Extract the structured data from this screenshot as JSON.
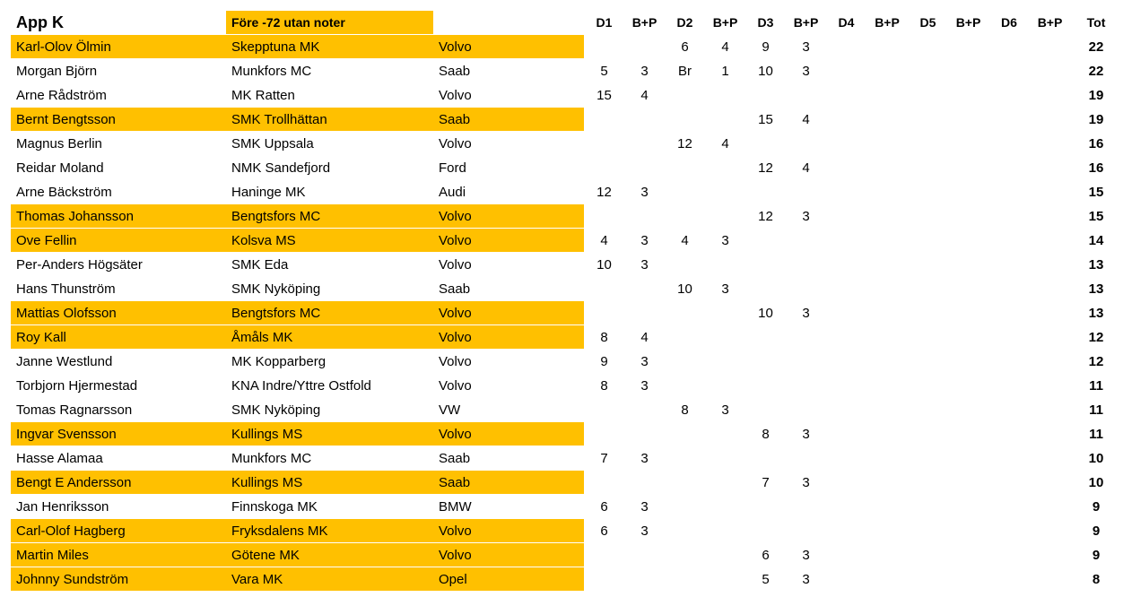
{
  "header": {
    "title": "App K",
    "subtitle": "Före -72 utan noter",
    "columns": [
      "D1",
      "B+P",
      "D2",
      "B+P",
      "D3",
      "B+P",
      "D4",
      "B+P",
      "D5",
      "B+P",
      "D6",
      "B+P",
      "Tot"
    ]
  },
  "highlight_color": "#FFC000",
  "rows": [
    {
      "name": "Karl-Olov Ölmin",
      "club": "Skepptuna MK",
      "car": "Volvo",
      "scores": [
        "",
        "",
        "6",
        "4",
        "9",
        "3",
        "",
        "",
        "",
        "",
        "",
        ""
      ],
      "tot": "22",
      "hl": true
    },
    {
      "name": "Morgan Björn",
      "club": "Munkfors MC",
      "car": "Saab",
      "scores": [
        "5",
        "3",
        "Br",
        "1",
        "10",
        "3",
        "",
        "",
        "",
        "",
        "",
        ""
      ],
      "tot": "22",
      "hl": false
    },
    {
      "name": "Arne Rådström",
      "club": "MK Ratten",
      "car": "Volvo",
      "scores": [
        "15",
        "4",
        "",
        "",
        "",
        "",
        "",
        "",
        "",
        "",
        "",
        ""
      ],
      "tot": "19",
      "hl": false
    },
    {
      "name": "Bernt Bengtsson",
      "club": "SMK Trollhättan",
      "car": "Saab",
      "scores": [
        "",
        "",
        "",
        "",
        "15",
        "4",
        "",
        "",
        "",
        "",
        "",
        ""
      ],
      "tot": "19",
      "hl": true
    },
    {
      "name": "Magnus Berlin",
      "club": "SMK Uppsala",
      "car": "Volvo",
      "scores": [
        "",
        "",
        "12",
        "4",
        "",
        "",
        "",
        "",
        "",
        "",
        "",
        ""
      ],
      "tot": "16",
      "hl": false
    },
    {
      "name": "Reidar Moland",
      "club": "NMK Sandefjord",
      "car": "Ford",
      "scores": [
        "",
        "",
        "",
        "",
        "12",
        "4",
        "",
        "",
        "",
        "",
        "",
        ""
      ],
      "tot": "16",
      "hl": false
    },
    {
      "name": "Arne Bäckström",
      "club": "Haninge MK",
      "car": "Audi",
      "scores": [
        "12",
        "3",
        "",
        "",
        "",
        "",
        "",
        "",
        "",
        "",
        "",
        ""
      ],
      "tot": "15",
      "hl": false
    },
    {
      "name": "Thomas Johansson",
      "club": "Bengtsfors MC",
      "car": "Volvo",
      "scores": [
        "",
        "",
        "",
        "",
        "12",
        "3",
        "",
        "",
        "",
        "",
        "",
        ""
      ],
      "tot": "15",
      "hl": true
    },
    {
      "name": "Ove Fellin",
      "club": "Kolsva MS",
      "car": "Volvo",
      "scores": [
        "4",
        "3",
        "4",
        "3",
        "",
        "",
        "",
        "",
        "",
        "",
        "",
        ""
      ],
      "tot": "14",
      "hl": true
    },
    {
      "name": "Per-Anders Högsäter",
      "club": "SMK Eda",
      "car": "Volvo",
      "scores": [
        "10",
        "3",
        "",
        "",
        "",
        "",
        "",
        "",
        "",
        "",
        "",
        ""
      ],
      "tot": "13",
      "hl": false
    },
    {
      "name": "Hans Thunström",
      "club": "SMK Nyköping",
      "car": "Saab",
      "scores": [
        "",
        "",
        "10",
        "3",
        "",
        "",
        "",
        "",
        "",
        "",
        "",
        ""
      ],
      "tot": "13",
      "hl": false
    },
    {
      "name": "Mattias Olofsson",
      "club": "Bengtsfors MC",
      "car": "Volvo",
      "scores": [
        "",
        "",
        "",
        "",
        "10",
        "3",
        "",
        "",
        "",
        "",
        "",
        ""
      ],
      "tot": "13",
      "hl": true
    },
    {
      "name": "Roy Kall",
      "club": "Åmåls MK",
      "car": "Volvo",
      "scores": [
        "8",
        "4",
        "",
        "",
        "",
        "",
        "",
        "",
        "",
        "",
        "",
        ""
      ],
      "tot": "12",
      "hl": true
    },
    {
      "name": "Janne Westlund",
      "club": "MK Kopparberg",
      "car": "Volvo",
      "scores": [
        "9",
        "3",
        "",
        "",
        "",
        "",
        "",
        "",
        "",
        "",
        "",
        ""
      ],
      "tot": "12",
      "hl": false
    },
    {
      "name": "Torbjorn Hjermestad",
      "club": "KNA Indre/Yttre Ostfold",
      "car": "Volvo",
      "scores": [
        "8",
        "3",
        "",
        "",
        "",
        "",
        "",
        "",
        "",
        "",
        "",
        ""
      ],
      "tot": "11",
      "hl": false
    },
    {
      "name": "Tomas Ragnarsson",
      "club": "SMK Nyköping",
      "car": "VW",
      "scores": [
        "",
        "",
        "8",
        "3",
        "",
        "",
        "",
        "",
        "",
        "",
        "",
        ""
      ],
      "tot": "11",
      "hl": false
    },
    {
      "name": "Ingvar Svensson",
      "club": "Kullings MS",
      "car": "Volvo",
      "scores": [
        "",
        "",
        "",
        "",
        "8",
        "3",
        "",
        "",
        "",
        "",
        "",
        ""
      ],
      "tot": "11",
      "hl": true
    },
    {
      "name": "Hasse Alamaa",
      "club": "Munkfors MC",
      "car": "Saab",
      "scores": [
        "7",
        "3",
        "",
        "",
        "",
        "",
        "",
        "",
        "",
        "",
        "",
        ""
      ],
      "tot": "10",
      "hl": false
    },
    {
      "name": "Bengt E Andersson",
      "club": "Kullings MS",
      "car": "Saab",
      "scores": [
        "",
        "",
        "",
        "",
        "7",
        "3",
        "",
        "",
        "",
        "",
        "",
        ""
      ],
      "tot": "10",
      "hl": true
    },
    {
      "name": "Jan Henriksson",
      "club": "Finnskoga MK",
      "car": "BMW",
      "scores": [
        "6",
        "3",
        "",
        "",
        "",
        "",
        "",
        "",
        "",
        "",
        "",
        ""
      ],
      "tot": "9",
      "hl": false
    },
    {
      "name": "Carl-Olof Hagberg",
      "club": "Fryksdalens MK",
      "car": "Volvo",
      "scores": [
        "6",
        "3",
        "",
        "",
        "",
        "",
        "",
        "",
        "",
        "",
        "",
        ""
      ],
      "tot": "9",
      "hl": true
    },
    {
      "name": "Martin Miles",
      "club": "Götene MK",
      "car": "Volvo",
      "scores": [
        "",
        "",
        "",
        "",
        "6",
        "3",
        "",
        "",
        "",
        "",
        "",
        ""
      ],
      "tot": "9",
      "hl": true
    },
    {
      "name": "Johnny Sundström",
      "club": "Vara MK",
      "car": "Opel",
      "scores": [
        "",
        "",
        "",
        "",
        "5",
        "3",
        "",
        "",
        "",
        "",
        "",
        ""
      ],
      "tot": "8",
      "hl": true
    }
  ]
}
